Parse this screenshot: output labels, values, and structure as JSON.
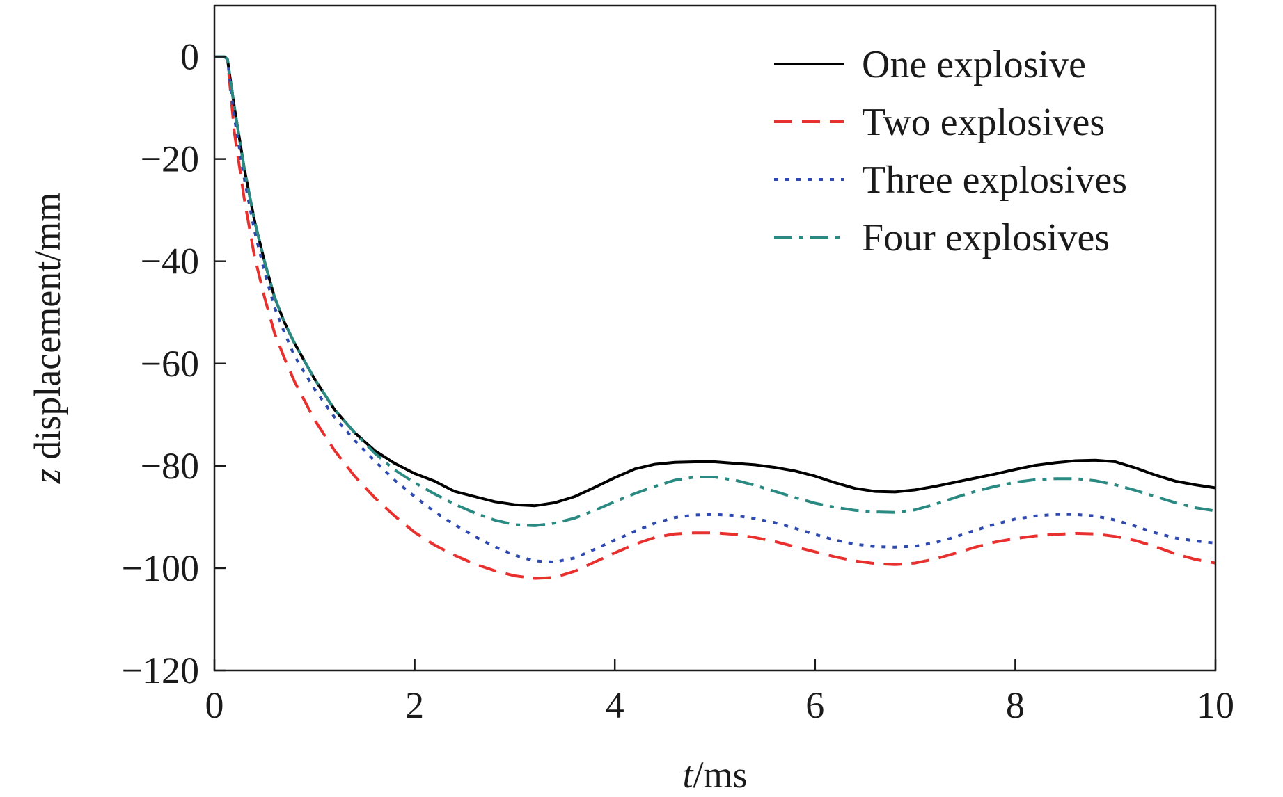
{
  "chart_data": {
    "type": "line",
    "xlabel": "t/ms",
    "xlabel_var": "t",
    "xlabel_unit": "/ms",
    "ylabel": "z displacement/mm",
    "ylabel_var": "z",
    "ylabel_unit": " displacement/mm",
    "xlim": [
      0,
      10
    ],
    "ylim": [
      -120,
      10
    ],
    "xticks": [
      0,
      2,
      4,
      6,
      8,
      10
    ],
    "yticks": [
      0,
      -20,
      -40,
      -60,
      -80,
      -100,
      -120
    ],
    "ytick_labels": [
      "0",
      "−20",
      "−40",
      "−60",
      "−80",
      "−100",
      "−120"
    ],
    "grid": false,
    "legend_position": "top-right",
    "series": [
      {
        "name": "One explosive",
        "color": "#000000",
        "dash": "solid",
        "points": [
          [
            0,
            0
          ],
          [
            0.1,
            0
          ],
          [
            0.13,
            -0.5
          ],
          [
            0.2,
            -10
          ],
          [
            0.3,
            -22
          ],
          [
            0.4,
            -32
          ],
          [
            0.5,
            -40
          ],
          [
            0.6,
            -47
          ],
          [
            0.7,
            -52
          ],
          [
            0.8,
            -56
          ],
          [
            1.0,
            -63
          ],
          [
            1.2,
            -69
          ],
          [
            1.4,
            -73.5
          ],
          [
            1.6,
            -77
          ],
          [
            1.8,
            -79.5
          ],
          [
            2.0,
            -81.5
          ],
          [
            2.2,
            -83
          ],
          [
            2.4,
            -85
          ],
          [
            2.6,
            -86
          ],
          [
            2.8,
            -87
          ],
          [
            3.0,
            -87.6
          ],
          [
            3.2,
            -87.8
          ],
          [
            3.4,
            -87.2
          ],
          [
            3.6,
            -86
          ],
          [
            3.8,
            -84.2
          ],
          [
            4.0,
            -82.3
          ],
          [
            4.2,
            -80.6
          ],
          [
            4.4,
            -79.7
          ],
          [
            4.6,
            -79.3
          ],
          [
            4.8,
            -79.2
          ],
          [
            5.0,
            -79.2
          ],
          [
            5.2,
            -79.5
          ],
          [
            5.4,
            -79.8
          ],
          [
            5.6,
            -80.3
          ],
          [
            5.8,
            -81
          ],
          [
            6.0,
            -82
          ],
          [
            6.2,
            -83.3
          ],
          [
            6.4,
            -84.4
          ],
          [
            6.6,
            -85
          ],
          [
            6.8,
            -85.1
          ],
          [
            7.0,
            -84.7
          ],
          [
            7.2,
            -84
          ],
          [
            7.4,
            -83.2
          ],
          [
            7.6,
            -82.4
          ],
          [
            7.8,
            -81.6
          ],
          [
            8.0,
            -80.7
          ],
          [
            8.2,
            -79.9
          ],
          [
            8.4,
            -79.4
          ],
          [
            8.6,
            -79
          ],
          [
            8.8,
            -78.9
          ],
          [
            9.0,
            -79.2
          ],
          [
            9.2,
            -80.4
          ],
          [
            9.4,
            -81.8
          ],
          [
            9.6,
            -83
          ],
          [
            9.8,
            -83.7
          ],
          [
            10.0,
            -84.3
          ]
        ]
      },
      {
        "name": "Two explosives",
        "color": "#e8302e",
        "dash": "dashed",
        "points": [
          [
            0,
            0
          ],
          [
            0.1,
            0
          ],
          [
            0.13,
            -0.5
          ],
          [
            0.2,
            -15
          ],
          [
            0.3,
            -28
          ],
          [
            0.4,
            -39
          ],
          [
            0.5,
            -47
          ],
          [
            0.6,
            -54
          ],
          [
            0.7,
            -59
          ],
          [
            0.8,
            -63.5
          ],
          [
            1.0,
            -71
          ],
          [
            1.2,
            -77
          ],
          [
            1.4,
            -82
          ],
          [
            1.6,
            -86.2
          ],
          [
            1.8,
            -89.8
          ],
          [
            2.0,
            -93
          ],
          [
            2.2,
            -95.5
          ],
          [
            2.4,
            -97.5
          ],
          [
            2.6,
            -99.2
          ],
          [
            2.8,
            -100.5
          ],
          [
            3.0,
            -101.5
          ],
          [
            3.2,
            -102
          ],
          [
            3.4,
            -101.8
          ],
          [
            3.6,
            -100.6
          ],
          [
            3.8,
            -98.8
          ],
          [
            4.0,
            -97
          ],
          [
            4.2,
            -95.3
          ],
          [
            4.4,
            -94
          ],
          [
            4.6,
            -93.3
          ],
          [
            4.8,
            -93.1
          ],
          [
            5.0,
            -93.1
          ],
          [
            5.2,
            -93.4
          ],
          [
            5.4,
            -94
          ],
          [
            5.6,
            -94.8
          ],
          [
            5.8,
            -95.8
          ],
          [
            6.0,
            -96.8
          ],
          [
            6.2,
            -97.8
          ],
          [
            6.4,
            -98.6
          ],
          [
            6.6,
            -99.1
          ],
          [
            6.8,
            -99.3
          ],
          [
            7.0,
            -99
          ],
          [
            7.2,
            -98.2
          ],
          [
            7.4,
            -97.1
          ],
          [
            7.6,
            -95.9
          ],
          [
            7.8,
            -94.9
          ],
          [
            8.0,
            -94.2
          ],
          [
            8.2,
            -93.7
          ],
          [
            8.4,
            -93.4
          ],
          [
            8.6,
            -93.2
          ],
          [
            8.8,
            -93.3
          ],
          [
            9.0,
            -93.8
          ],
          [
            9.2,
            -94.6
          ],
          [
            9.4,
            -95.8
          ],
          [
            9.6,
            -97.2
          ],
          [
            9.8,
            -98.3
          ],
          [
            10.0,
            -99
          ]
        ]
      },
      {
        "name": "Three explosives",
        "color": "#2e49b0",
        "dash": "dotted",
        "points": [
          [
            0,
            0
          ],
          [
            0.1,
            0
          ],
          [
            0.13,
            -0.5
          ],
          [
            0.2,
            -12
          ],
          [
            0.3,
            -24
          ],
          [
            0.4,
            -34
          ],
          [
            0.5,
            -42
          ],
          [
            0.6,
            -49
          ],
          [
            0.7,
            -54
          ],
          [
            0.8,
            -58.5
          ],
          [
            1.0,
            -65
          ],
          [
            1.2,
            -70.5
          ],
          [
            1.4,
            -75
          ],
          [
            1.6,
            -79
          ],
          [
            1.8,
            -82.8
          ],
          [
            2.0,
            -86
          ],
          [
            2.2,
            -89
          ],
          [
            2.4,
            -91.5
          ],
          [
            2.6,
            -93.8
          ],
          [
            2.8,
            -95.8
          ],
          [
            3.0,
            -97.5
          ],
          [
            3.2,
            -98.6
          ],
          [
            3.4,
            -98.8
          ],
          [
            3.6,
            -98
          ],
          [
            3.8,
            -96.3
          ],
          [
            4.0,
            -94.5
          ],
          [
            4.2,
            -92.8
          ],
          [
            4.4,
            -91.2
          ],
          [
            4.6,
            -90.1
          ],
          [
            4.8,
            -89.6
          ],
          [
            5.0,
            -89.5
          ],
          [
            5.2,
            -89.7
          ],
          [
            5.4,
            -90.3
          ],
          [
            5.6,
            -91.1
          ],
          [
            5.8,
            -92.2
          ],
          [
            6.0,
            -93.4
          ],
          [
            6.2,
            -94.5
          ],
          [
            6.4,
            -95.3
          ],
          [
            6.6,
            -95.8
          ],
          [
            6.8,
            -95.9
          ],
          [
            7.0,
            -95.7
          ],
          [
            7.2,
            -95
          ],
          [
            7.4,
            -93.9
          ],
          [
            7.6,
            -92.6
          ],
          [
            7.8,
            -91.4
          ],
          [
            8.0,
            -90.4
          ],
          [
            8.2,
            -89.8
          ],
          [
            8.4,
            -89.5
          ],
          [
            8.6,
            -89.5
          ],
          [
            8.8,
            -89.8
          ],
          [
            9.0,
            -90.6
          ],
          [
            9.2,
            -91.8
          ],
          [
            9.4,
            -93.1
          ],
          [
            9.6,
            -94.1
          ],
          [
            9.8,
            -94.7
          ],
          [
            10.0,
            -95.1
          ]
        ]
      },
      {
        "name": "Four explosives",
        "color": "#2a8a82",
        "dash": "dashdot",
        "points": [
          [
            0,
            0
          ],
          [
            0.1,
            0
          ],
          [
            0.13,
            -0.5
          ],
          [
            0.2,
            -10
          ],
          [
            0.3,
            -22
          ],
          [
            0.4,
            -32
          ],
          [
            0.5,
            -40
          ],
          [
            0.6,
            -47
          ],
          [
            0.7,
            -52
          ],
          [
            0.8,
            -56
          ],
          [
            1.0,
            -63
          ],
          [
            1.2,
            -69
          ],
          [
            1.4,
            -73.5
          ],
          [
            1.6,
            -77.5
          ],
          [
            1.8,
            -80.8
          ],
          [
            2.0,
            -83.3
          ],
          [
            2.2,
            -85.5
          ],
          [
            2.4,
            -87.5
          ],
          [
            2.6,
            -89.2
          ],
          [
            2.8,
            -90.6
          ],
          [
            3.0,
            -91.5
          ],
          [
            3.2,
            -91.7
          ],
          [
            3.4,
            -91.2
          ],
          [
            3.6,
            -90.2
          ],
          [
            3.8,
            -88.7
          ],
          [
            4.0,
            -87
          ],
          [
            4.2,
            -85.4
          ],
          [
            4.4,
            -84
          ],
          [
            4.6,
            -82.8
          ],
          [
            4.8,
            -82.2
          ],
          [
            5.0,
            -82.2
          ],
          [
            5.2,
            -82.8
          ],
          [
            5.4,
            -83.8
          ],
          [
            5.6,
            -85
          ],
          [
            5.8,
            -86.2
          ],
          [
            6.0,
            -87.3
          ],
          [
            6.2,
            -88.1
          ],
          [
            6.4,
            -88.7
          ],
          [
            6.6,
            -89
          ],
          [
            6.8,
            -89.1
          ],
          [
            7.0,
            -88.6
          ],
          [
            7.2,
            -87.5
          ],
          [
            7.4,
            -86.2
          ],
          [
            7.6,
            -85
          ],
          [
            7.8,
            -84
          ],
          [
            8.0,
            -83.2
          ],
          [
            8.2,
            -82.7
          ],
          [
            8.4,
            -82.5
          ],
          [
            8.6,
            -82.5
          ],
          [
            8.8,
            -82.9
          ],
          [
            9.0,
            -83.7
          ],
          [
            9.2,
            -84.8
          ],
          [
            9.4,
            -86
          ],
          [
            9.6,
            -87.2
          ],
          [
            9.8,
            -88.2
          ],
          [
            10.0,
            -88.8
          ]
        ]
      }
    ]
  }
}
